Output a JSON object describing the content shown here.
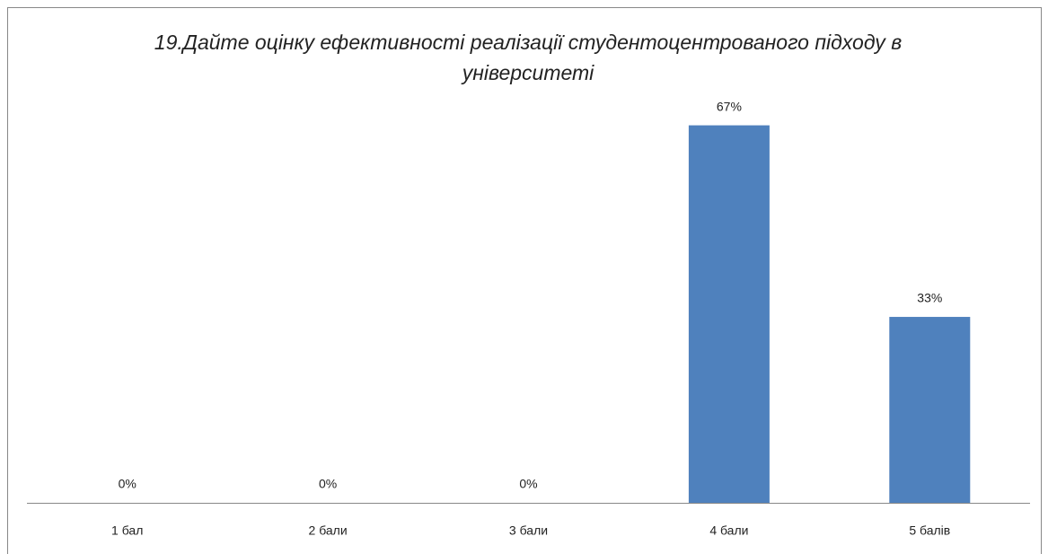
{
  "chart_data": {
    "type": "bar",
    "title": "19.Дайте оцінку ефективності реалізації студентоцентрованого підходу в університеті",
    "categories": [
      "1 бал",
      "2 бали",
      "3 бали",
      "4 бали",
      "5 балів"
    ],
    "values": [
      0,
      0,
      0,
      67,
      33
    ],
    "value_labels": [
      "0%",
      "0%",
      "0%",
      "67%",
      "33%"
    ],
    "color": "#4f81bd",
    "ylim": [
      0,
      80
    ]
  }
}
